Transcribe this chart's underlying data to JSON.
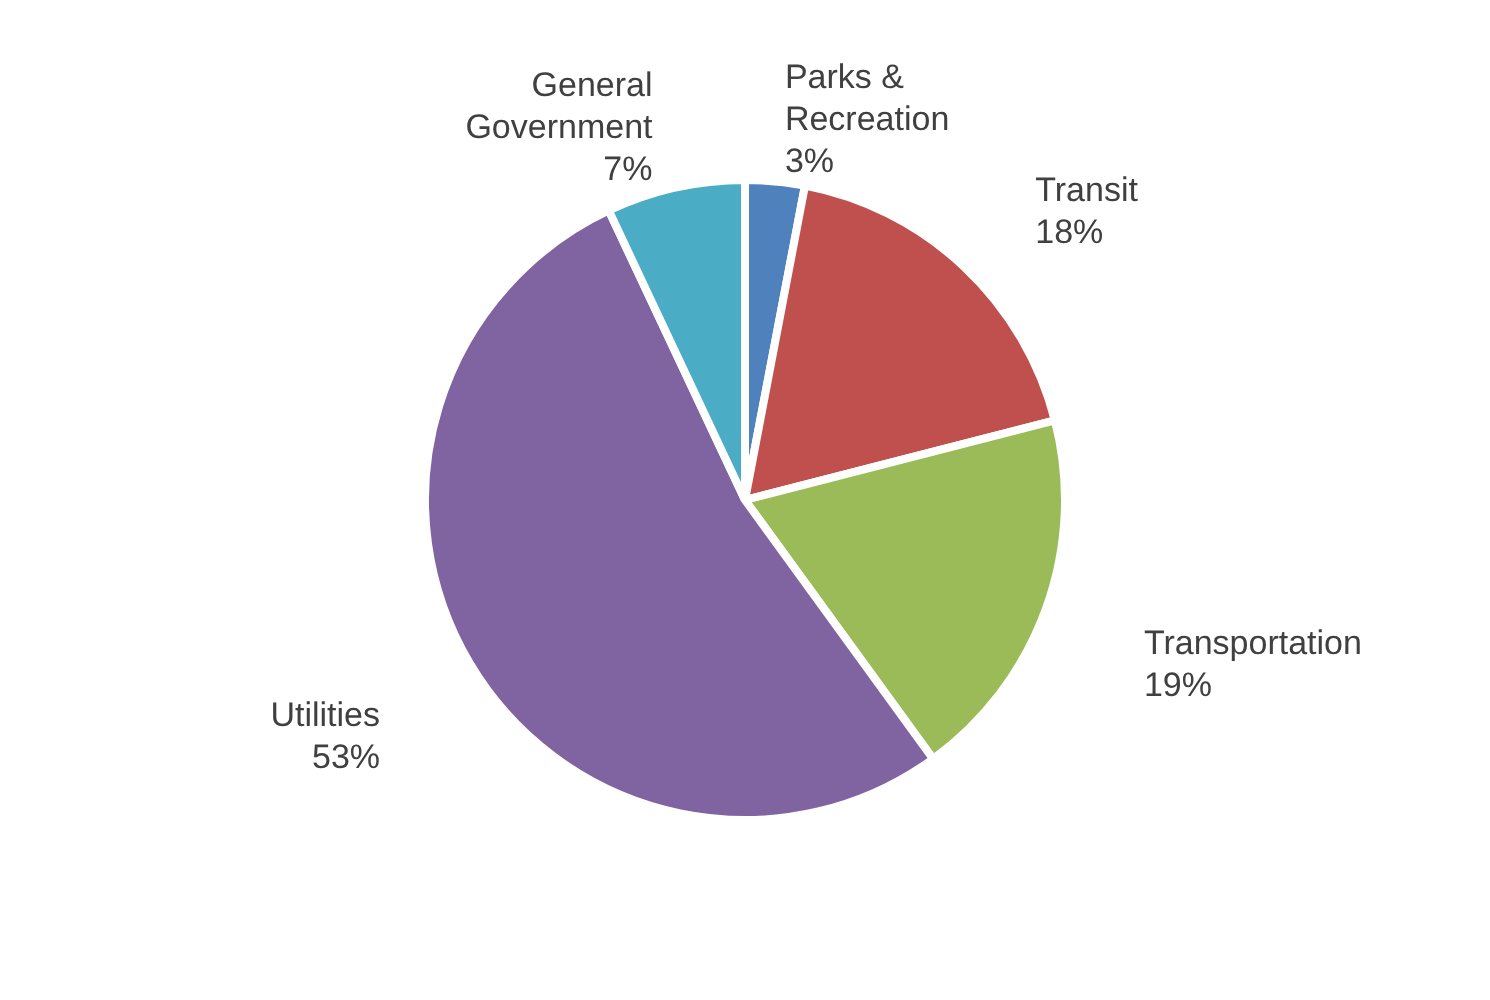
{
  "chart_data": {
    "type": "pie",
    "categories": [
      "Parks & Recreation",
      "Transit",
      "Transportation",
      "Utilities",
      "General Government"
    ],
    "values": [
      3,
      18,
      19,
      53,
      7
    ],
    "value_labels": [
      "3%",
      "18%",
      "19%",
      "53%",
      "7%"
    ],
    "colors": [
      "#4f81bd",
      "#c0504d",
      "#9bbb59",
      "#8064a2",
      "#4bacc6"
    ],
    "legend": false
  }
}
